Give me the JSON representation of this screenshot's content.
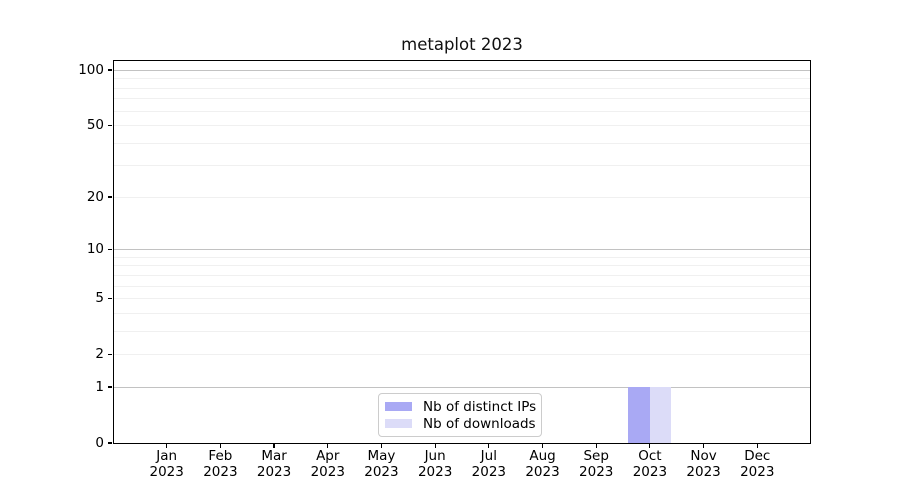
{
  "chart_data": {
    "type": "bar",
    "title": "metaplot 2023",
    "categories": [
      "Jan",
      "Feb",
      "Mar",
      "Apr",
      "May",
      "Jun",
      "Jul",
      "Aug",
      "Sep",
      "Oct",
      "Nov",
      "Dec"
    ],
    "category_sublabel": "2023",
    "series": [
      {
        "name": "Nb of distinct IPs",
        "color": "#a9a9f4",
        "values": [
          0,
          0,
          0,
          0,
          0,
          0,
          0,
          0,
          0,
          1,
          0,
          0
        ]
      },
      {
        "name": "Nb of downloads",
        "color": "#dcdcf8",
        "values": [
          0,
          0,
          0,
          0,
          0,
          0,
          0,
          0,
          0,
          1,
          0,
          0
        ]
      }
    ],
    "y_axis": {
      "scale": "log1p",
      "ticks": [
        0,
        1,
        2,
        5,
        10,
        20,
        50,
        100
      ],
      "major_gridlines": [
        1,
        10,
        100
      ],
      "minor_gridlines": [
        2,
        3,
        4,
        5,
        6,
        7,
        8,
        9,
        20,
        30,
        40,
        50,
        60,
        70,
        80,
        90
      ],
      "ylim": [
        0,
        120
      ]
    },
    "grid": "horizontal-only",
    "legend_position": "lower-center",
    "colors": {
      "major_grid": "#c2c2c2",
      "minor_grid": "#f0f0f0",
      "spine": "#000000",
      "background": "#ffffff"
    }
  }
}
